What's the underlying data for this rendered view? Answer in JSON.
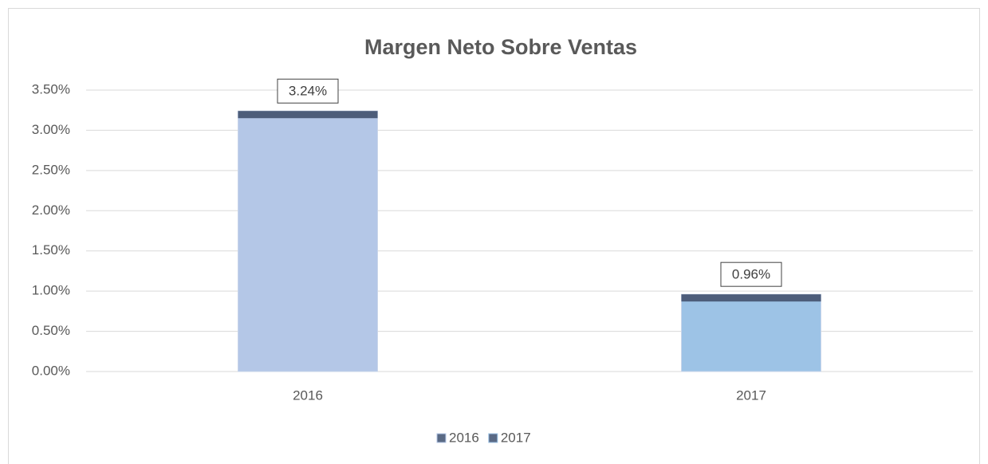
{
  "chart_data": {
    "type": "bar",
    "title": "Margen Neto Sobre Ventas",
    "categories": [
      "2016",
      "2017"
    ],
    "series": [
      {
        "name": "2016",
        "color": "#b4c7e7",
        "values": [
          3.24,
          null
        ],
        "value_labels": [
          "3.24%",
          null
        ]
      },
      {
        "name": "2017",
        "color": "#9dc3e6",
        "values": [
          null,
          0.96
        ],
        "value_labels": [
          null,
          "0.96%"
        ]
      }
    ],
    "ylim": [
      0,
      3.5
    ],
    "yticks": [
      {
        "value": 0,
        "label": "0.00%"
      },
      {
        "value": 0.5,
        "label": "0.50%"
      },
      {
        "value": 1,
        "label": "1.00%"
      },
      {
        "value": 1.5,
        "label": "1.50%"
      },
      {
        "value": 2,
        "label": "2.00%"
      },
      {
        "value": 2.5,
        "label": "2.50%"
      },
      {
        "value": 3,
        "label": "3.00%"
      },
      {
        "value": 3.5,
        "label": "3.50%"
      }
    ],
    "grid": true,
    "legend": "bottom"
  }
}
